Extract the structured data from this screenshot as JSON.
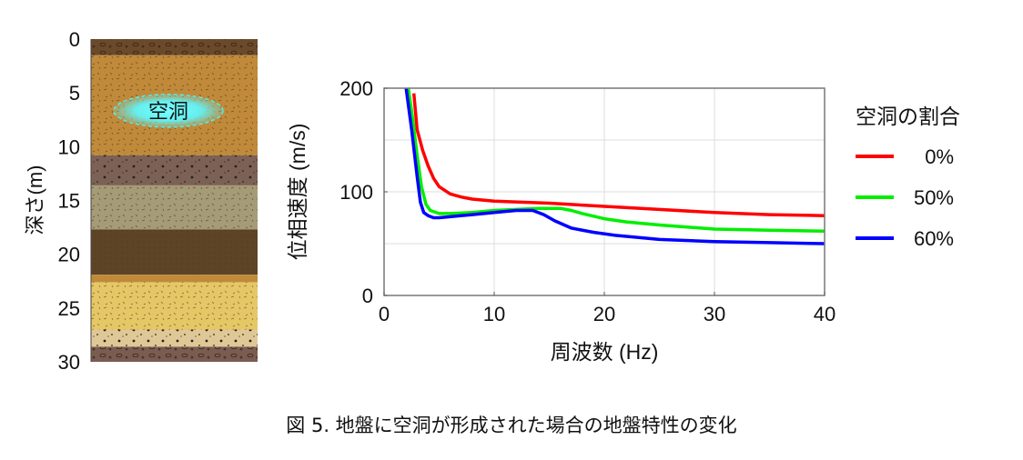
{
  "soil_column": {
    "ylabel": "深さ(m)",
    "ticks": [
      "0",
      "5",
      "10",
      "15",
      "20",
      "25",
      "30"
    ],
    "depth_range": [
      0,
      30
    ],
    "void_label": "空洞",
    "void_depth_m": 7,
    "layers": [
      {
        "top": 0,
        "bottom": 1.5,
        "color": "#6b4a2a",
        "pattern": "gravel"
      },
      {
        "top": 1.5,
        "bottom": 10.8,
        "color": "#c08a3a",
        "pattern": "dash"
      },
      {
        "top": 10.8,
        "bottom": 13.6,
        "color": "#7d6155",
        "pattern": "dots"
      },
      {
        "top": 13.6,
        "bottom": 17.7,
        "color": "#a59b76",
        "pattern": "dash"
      },
      {
        "top": 17.7,
        "bottom": 21.9,
        "color": "#5e4426",
        "pattern": "fine"
      },
      {
        "top": 21.9,
        "bottom": 22.6,
        "color": "#c08a3a",
        "pattern": "none"
      },
      {
        "top": 22.6,
        "bottom": 27.0,
        "color": "#e6c766",
        "pattern": "dash"
      },
      {
        "top": 27.0,
        "bottom": 28.6,
        "color": "#e0c896",
        "pattern": "dots"
      },
      {
        "top": 28.6,
        "bottom": 30.0,
        "color": "#7a5c50",
        "pattern": "gravel"
      }
    ]
  },
  "chart_data": {
    "type": "line",
    "title": "",
    "xlabel": "周波数 (Hz)",
    "ylabel": "位相速度 (m/s)",
    "xlim": [
      0,
      40
    ],
    "ylim": [
      0,
      200
    ],
    "xticks": [
      "0",
      "10",
      "20",
      "30",
      "40"
    ],
    "yticks": [
      "0",
      "100",
      "200"
    ],
    "grid": true,
    "legend_title": "空洞の割合",
    "legend_position": "right",
    "series": [
      {
        "name": "0%",
        "color": "#ff0000",
        "x": [
          2.7,
          3,
          3.5,
          4,
          4.5,
          5,
          6,
          7,
          8,
          10,
          15,
          20,
          25,
          30,
          35,
          40
        ],
        "y": [
          195,
          160,
          140,
          125,
          113,
          105,
          98,
          95,
          93,
          91,
          89,
          86,
          83,
          80,
          78,
          77
        ]
      },
      {
        "name": "50%",
        "color": "#00ee00",
        "x": [
          2.2,
          2.6,
          3,
          3.4,
          3.8,
          4.2,
          5,
          6,
          8,
          10,
          12,
          14,
          16,
          17,
          18,
          20,
          22,
          25,
          30,
          35,
          40
        ],
        "y": [
          200,
          170,
          135,
          105,
          88,
          82,
          79,
          79,
          80,
          82,
          83,
          84,
          84,
          82,
          79,
          74,
          71,
          68,
          64,
          63,
          62
        ]
      },
      {
        "name": "60%",
        "color": "#0000ff",
        "x": [
          2,
          2.5,
          3,
          3.3,
          3.6,
          4,
          4.5,
          5,
          6,
          8,
          10,
          12,
          13.5,
          14.5,
          15.5,
          17,
          19,
          21,
          25,
          30,
          35,
          40
        ],
        "y": [
          200,
          160,
          115,
          90,
          80,
          77,
          75,
          75,
          76,
          78,
          80,
          82,
          82,
          78,
          72,
          65,
          61,
          58,
          54,
          52,
          51,
          50
        ]
      }
    ]
  },
  "caption": "図 5. 地盤に空洞が形成された場合の地盤特性の変化"
}
